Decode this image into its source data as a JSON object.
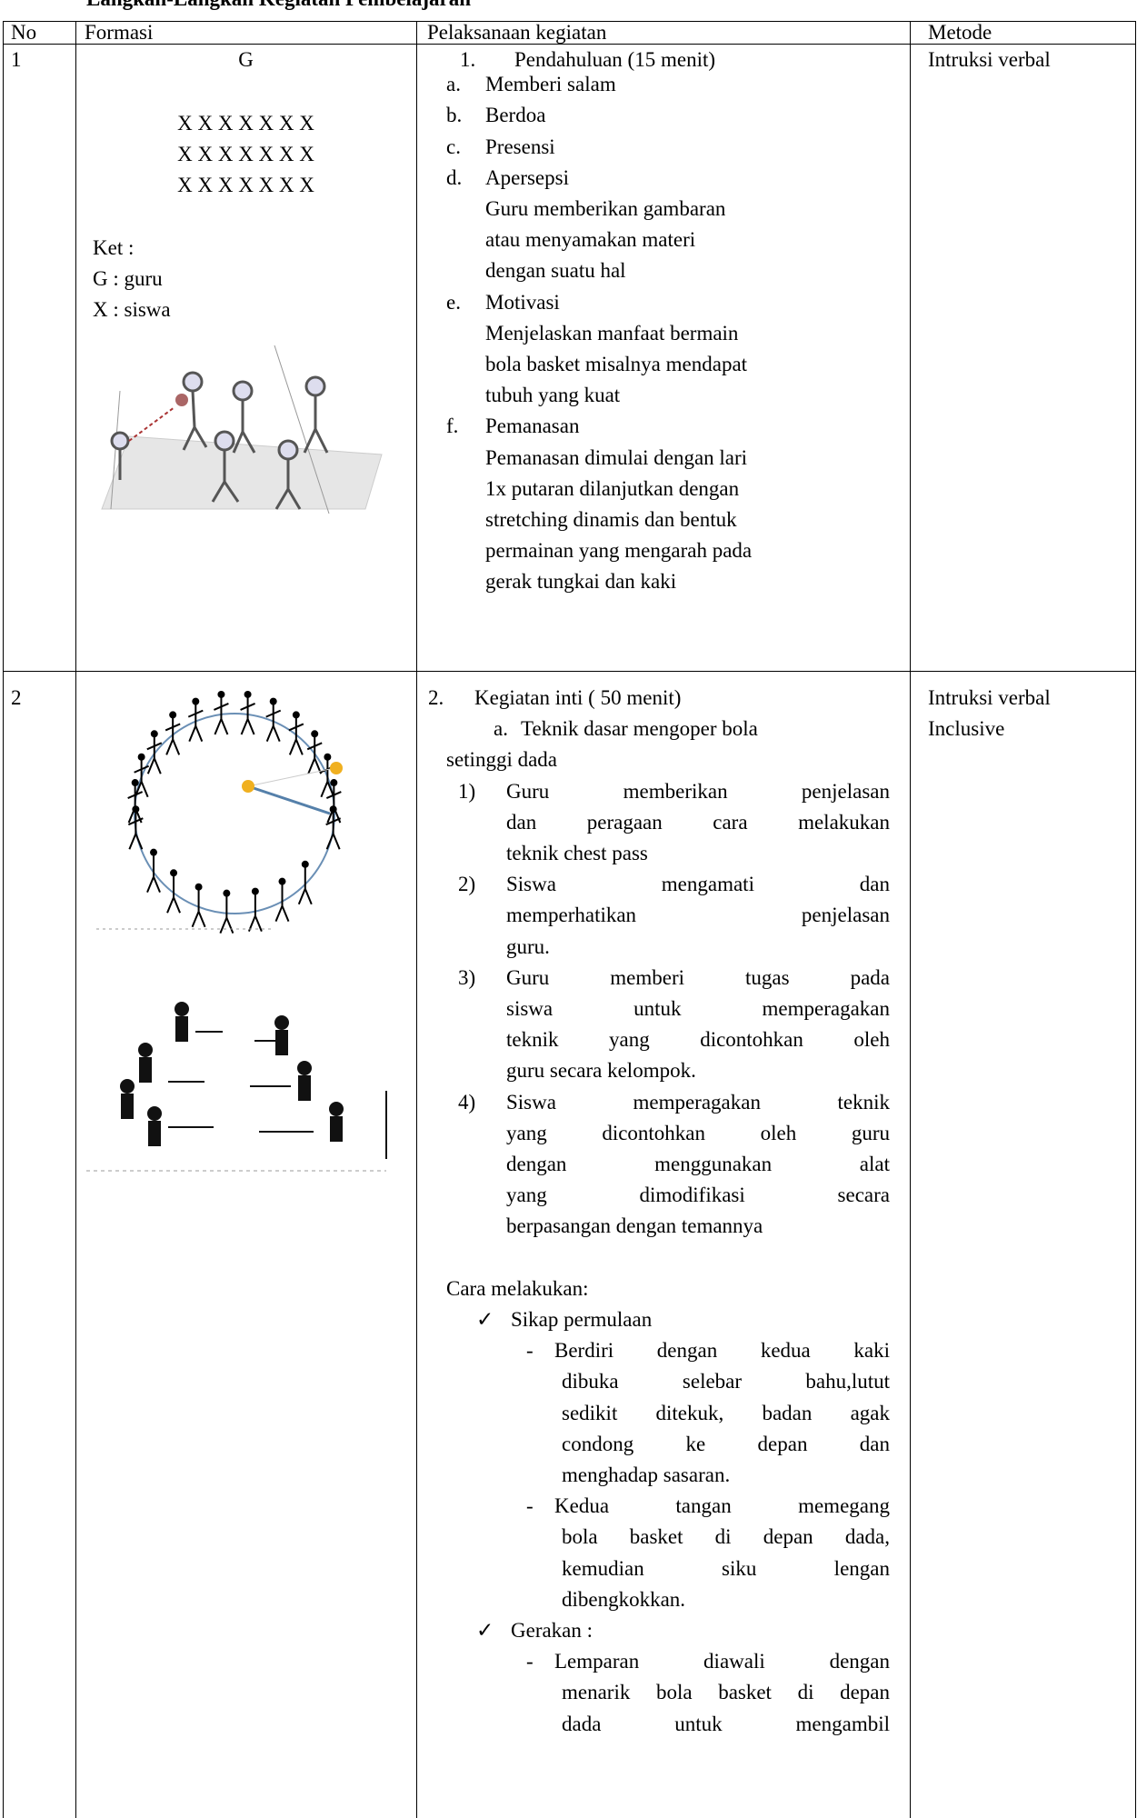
{
  "header": {
    "title": "Langkah-Langkah Kegiatan Pembelajaran"
  },
  "table": {
    "columns": [
      "No",
      "Formasi",
      "Pelaksanaan kegiatan",
      "Metode"
    ],
    "rows": [
      {
        "no": "1",
        "formasi": {
          "teacher": "G",
          "students": [
            "X X X X X X X",
            "X X X X X X X",
            "X X X X X X X"
          ],
          "legend": [
            "Ket :",
            "G : guru",
            "X : siswa"
          ]
        },
        "pelaksanaan": [
          {
            "marker": "1.",
            "text": "Pendahuluan (15 menit)"
          },
          {
            "marker": "a.",
            "text": "Memberi salam"
          },
          {
            "marker": "b.",
            "text": "Berdoa"
          },
          {
            "marker": "c.",
            "text": "Presensi"
          },
          {
            "marker": "d.",
            "text": "Apersepsi"
          },
          "Guru memberikan gambaran",
          "atau menyamakan materi",
          "dengan suatu hal",
          {
            "marker": "e.",
            "text": "Motivasi"
          },
          "Menjelaskan manfaat bermain",
          "bola basket misalnya mendapat",
          "tubuh yang kuat",
          {
            "marker": "f.",
            "text": "Pemanasan"
          },
          "Pemanasan dimulai dengan lari",
          "1x putaran dilanjutkan dengan",
          "stretching dinamis dan bentuk",
          "permainan yang mengarah pada",
          "gerak tungkai dan kaki"
        ],
        "metode": [
          "Intruksi verbal"
        ]
      },
      {
        "no": "2",
        "pelaksanaan": [
          {
            "marker": "2.",
            "text": "Kegiatan inti ( 50 menit)"
          },
          {
            "marker": "a.",
            "text": "Teknik dasar mengoper bola"
          },
          "setinggi dada",
          {
            "marker": "1)",
            "text": "Guru memberikan penjelasan"
          },
          "dan peragaan cara melakukan",
          "teknik chest pass",
          {
            "marker": "2)",
            "text": "Siswa mengamati dan"
          },
          "memperhatikan penjelasan",
          "guru.",
          {
            "marker": "3)",
            "text": "Guru memberi tugas pada"
          },
          "siswa untuk memperagakan",
          "teknik yang dicontohkan oleh",
          "guru secara kelompok.",
          {
            "marker": "4)",
            "text": "Siswa memperagakan teknik"
          },
          "yang dicontohkan oleh guru",
          "dengan menggunakan alat",
          "yang dimodifikasi secara",
          "berpasangan dengan temannya",
          "Cara melakukan:",
          {
            "marker": "✓",
            "text": "Sikap permulaan"
          },
          {
            "marker": "-",
            "text": "Berdiri dengan kedua kaki"
          },
          "dibuka selebar bahu,lutut",
          "sedikit ditekuk, badan agak",
          "condong ke depan dan",
          "menghadap sasaran.",
          {
            "marker": "-",
            "text": "Kedua tangan memegang"
          },
          "bola basket di depan dada,",
          "kemudian siku lengan",
          "dibengkokkan.",
          {
            "marker": "✓",
            "text": "Gerakan :"
          },
          {
            "marker": "-",
            "text": "Lemparan diawali dengan"
          },
          "menarik bola basket di depan",
          "dada untuk mengambil"
        ],
        "metode": [
          "Intruksi verbal",
          "Inclusive"
        ]
      }
    ]
  }
}
